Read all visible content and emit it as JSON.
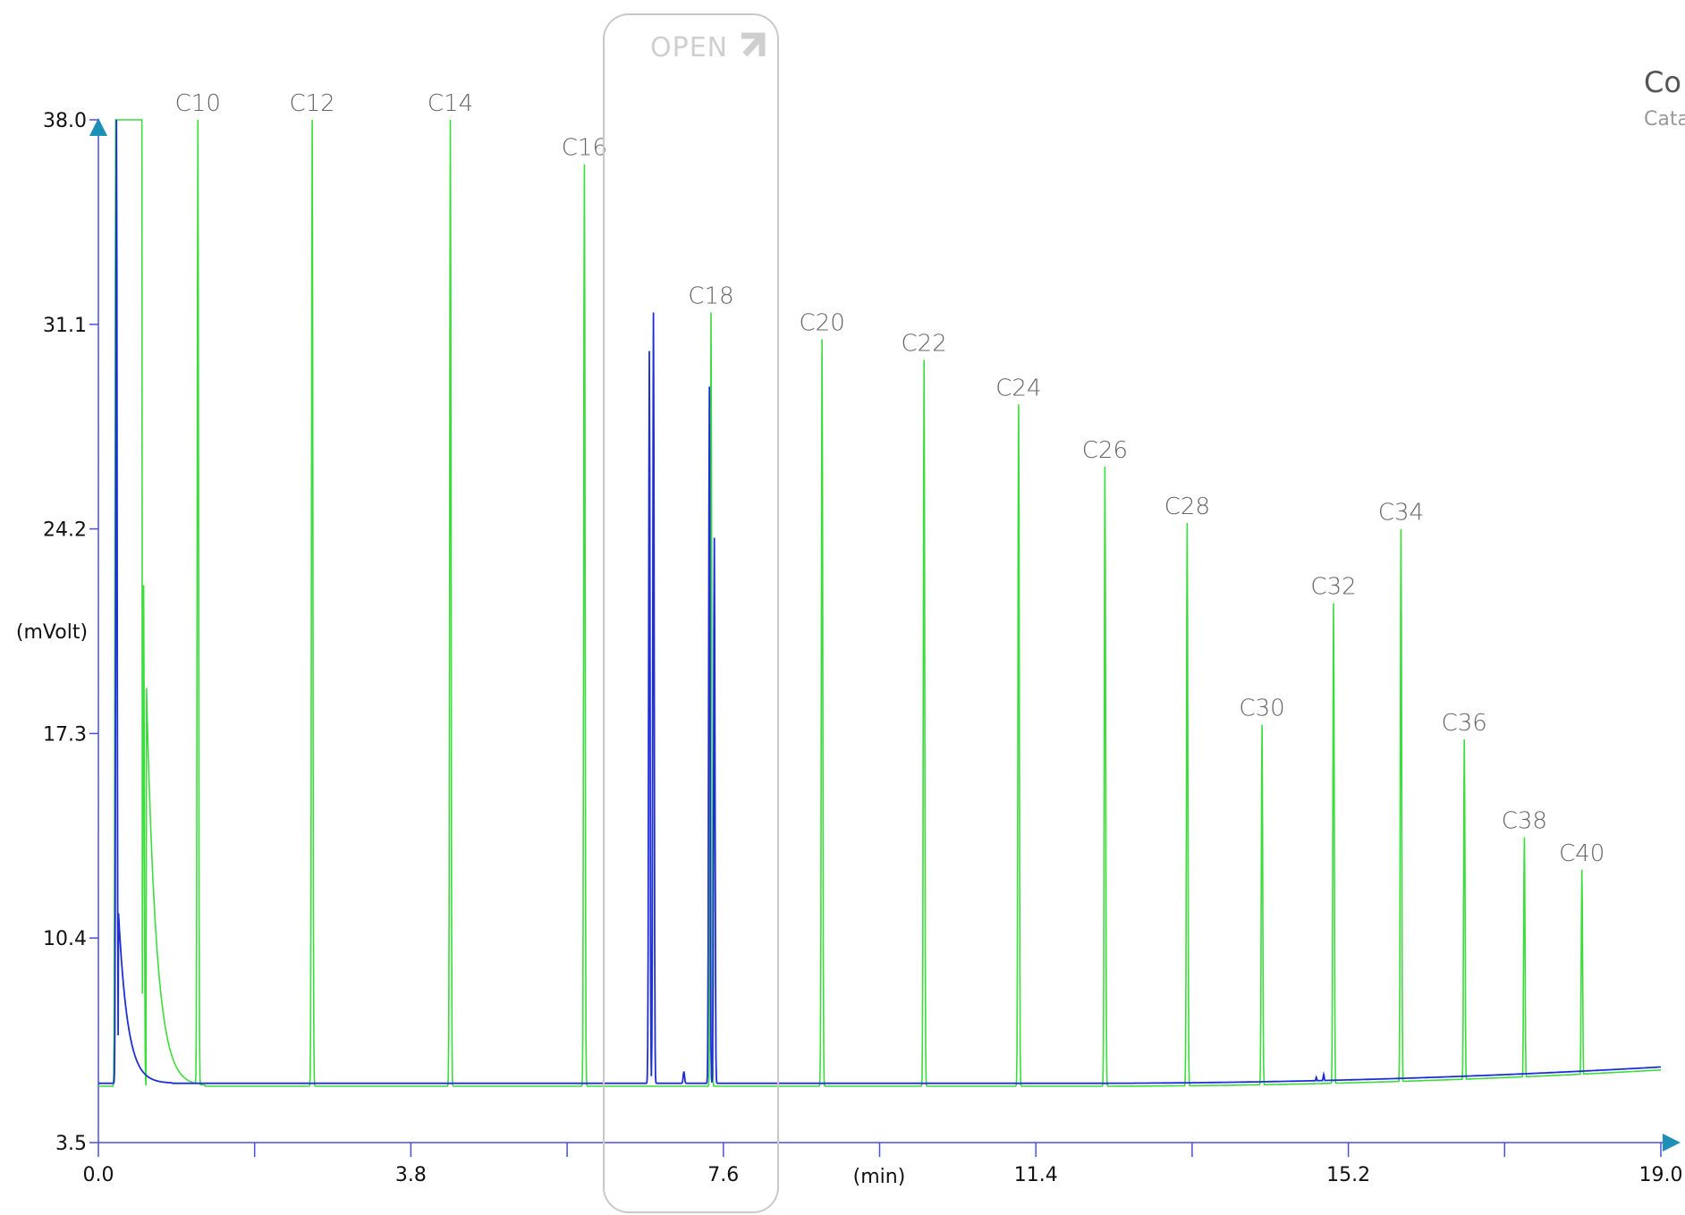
{
  "chart_data": {
    "type": "line",
    "xlabel": "(min)",
    "ylabel": "(mVolt)",
    "xlim": [
      0.0,
      19.0
    ],
    "ylim": [
      3.5,
      38.0
    ],
    "x_ticks": [
      "0.0",
      "3.8",
      "7.6",
      "11.4",
      "15.2",
      "19.0"
    ],
    "y_ticks": [
      "38.0",
      "31.1",
      "24.2",
      "17.3",
      "10.4",
      "3.5"
    ],
    "peak_labels": [
      {
        "label": "C10",
        "x": 1.21,
        "y": 38.0
      },
      {
        "label": "C12",
        "x": 2.6,
        "y": 38.0
      },
      {
        "label": "C14",
        "x": 4.28,
        "y": 38.0
      },
      {
        "label": "C16",
        "x": 5.91,
        "y": 36.5
      },
      {
        "label": "C18",
        "x": 7.45,
        "y": 31.5
      },
      {
        "label": "C20",
        "x": 8.8,
        "y": 30.6
      },
      {
        "label": "C22",
        "x": 10.04,
        "y": 29.9
      },
      {
        "label": "C24",
        "x": 11.19,
        "y": 28.4
      },
      {
        "label": "C26",
        "x": 12.24,
        "y": 26.3
      },
      {
        "label": "C28",
        "x": 13.24,
        "y": 24.4
      },
      {
        "label": "C30",
        "x": 14.15,
        "y": 17.6
      },
      {
        "label": "C32",
        "x": 15.02,
        "y": 21.7
      },
      {
        "label": "C34",
        "x": 15.84,
        "y": 24.2
      },
      {
        "label": "C36",
        "x": 16.61,
        "y": 17.1
      },
      {
        "label": "C38",
        "x": 17.34,
        "y": 13.8
      },
      {
        "label": "C40",
        "x": 18.04,
        "y": 12.7
      }
    ],
    "series": [
      {
        "color": "#3ddc3d",
        "baseline": 5.4,
        "peaks": [
          {
            "x": 0.21,
            "y": 38.0,
            "w": 0.02
          },
          {
            "x": 0.55,
            "y": 22.3,
            "w": 0.02
          },
          {
            "x": 0.78,
            "y": 6.6,
            "w": 0.02
          },
          {
            "x": 1.2,
            "y": 7.0,
            "w": 0.02
          },
          {
            "x": 1.21,
            "y": 38.0,
            "w": 0.02
          },
          {
            "x": 2.6,
            "y": 38.0,
            "w": 0.02
          },
          {
            "x": 4.28,
            "y": 38.0,
            "w": 0.02
          },
          {
            "x": 5.91,
            "y": 36.5,
            "w": 0.02
          },
          {
            "x": 7.45,
            "y": 31.5,
            "w": 0.02
          },
          {
            "x": 8.8,
            "y": 30.6,
            "w": 0.02
          },
          {
            "x": 10.04,
            "y": 29.9,
            "w": 0.02
          },
          {
            "x": 11.19,
            "y": 28.4,
            "w": 0.02
          },
          {
            "x": 12.24,
            "y": 26.3,
            "w": 0.02
          },
          {
            "x": 13.24,
            "y": 24.4,
            "w": 0.02
          },
          {
            "x": 14.15,
            "y": 17.6,
            "w": 0.02
          },
          {
            "x": 15.02,
            "y": 21.7,
            "w": 0.02
          },
          {
            "x": 15.84,
            "y": 24.2,
            "w": 0.02
          },
          {
            "x": 16.61,
            "y": 17.1,
            "w": 0.02
          },
          {
            "x": 17.34,
            "y": 13.8,
            "w": 0.02
          },
          {
            "x": 18.04,
            "y": 12.7,
            "w": 0.02
          }
        ],
        "plateau": {
          "x_start": 0.21,
          "x_end": 0.53,
          "y": 38.0
        },
        "tail_from": 0.58,
        "tail_to": 1.3
      },
      {
        "color": "#1f2fd6",
        "baseline": 5.5,
        "peaks": [
          {
            "x": 0.22,
            "y": 38.0,
            "w": 0.02
          },
          {
            "x": 6.7,
            "y": 30.2,
            "w": 0.02
          },
          {
            "x": 6.75,
            "y": 31.5,
            "w": 0.02
          },
          {
            "x": 7.12,
            "y": 5.9,
            "w": 0.02
          },
          {
            "x": 7.43,
            "y": 29.0,
            "w": 0.02
          },
          {
            "x": 7.49,
            "y": 23.9,
            "w": 0.02
          },
          {
            "x": 14.81,
            "y": 5.7,
            "w": 0.02
          },
          {
            "x": 14.9,
            "y": 5.8,
            "w": 0.02
          }
        ],
        "tail_from": 0.24,
        "tail_to": 0.9
      }
    ]
  },
  "overlay": {
    "open_label": "OPEN",
    "right_title": "Co",
    "right_subtitle": "Cata"
  }
}
